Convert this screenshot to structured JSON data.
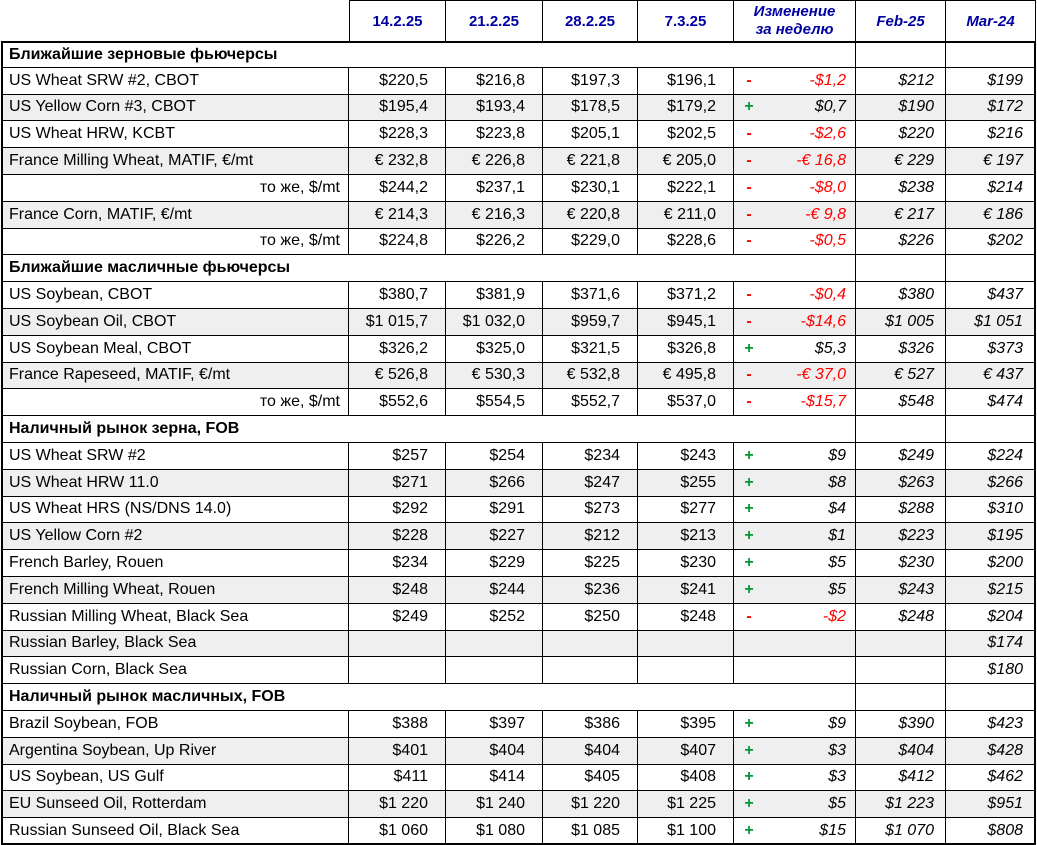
{
  "colors": {
    "header_text": "#0000A0",
    "negative": "#FF0000",
    "positive": "#009933",
    "row_shade": "#EFEFEF",
    "border": "#000000"
  },
  "header": {
    "date_columns": [
      "14.2.25",
      "21.2.25",
      "28.2.25",
      "7.3.25"
    ],
    "change_label_line1": "Изменение",
    "change_label_line2": "за неделю",
    "month_columns": [
      "Feb-25",
      "Mar-24"
    ]
  },
  "rows": [
    {
      "type": "section",
      "label": "Ближайшие зерновые фьючерсы"
    },
    {
      "type": "data",
      "label": "US Wheat SRW #2, CBOT",
      "align": "left",
      "values": [
        "$220,5",
        "$216,8",
        "$197,3",
        "$196,1"
      ],
      "sign": "-",
      "change": "-$1,2",
      "feb25": "$212",
      "mar24": "$199"
    },
    {
      "type": "data",
      "label": "US Yellow Corn #3, CBOT",
      "align": "left",
      "values": [
        "$195,4",
        "$193,4",
        "$178,5",
        "$179,2"
      ],
      "sign": "+",
      "change": "$0,7",
      "feb25": "$190",
      "mar24": "$172"
    },
    {
      "type": "data",
      "label": "US Wheat HRW, KCBT",
      "align": "left",
      "values": [
        "$228,3",
        "$223,8",
        "$205,1",
        "$202,5"
      ],
      "sign": "-",
      "change": "-$2,6",
      "feb25": "$220",
      "mar24": "$216"
    },
    {
      "type": "data",
      "label": "France Milling Wheat, MATIF, €/mt",
      "align": "left",
      "values": [
        "€ 232,8",
        "€ 226,8",
        "€ 221,8",
        "€ 205,0"
      ],
      "sign": "-",
      "change": "-€ 16,8",
      "feb25": "€ 229",
      "mar24": "€ 197"
    },
    {
      "type": "data",
      "label": "то же, $/mt",
      "align": "right",
      "values": [
        "$244,2",
        "$237,1",
        "$230,1",
        "$222,1"
      ],
      "sign": "-",
      "change": "-$8,0",
      "feb25": "$238",
      "mar24": "$214"
    },
    {
      "type": "data",
      "label": "France Corn, MATIF, €/mt",
      "align": "left",
      "values": [
        "€ 214,3",
        "€ 216,3",
        "€ 220,8",
        "€ 211,0"
      ],
      "sign": "-",
      "change": "-€ 9,8",
      "feb25": "€ 217",
      "mar24": "€ 186"
    },
    {
      "type": "data",
      "label": "то же, $/mt",
      "align": "right",
      "values": [
        "$224,8",
        "$226,2",
        "$229,0",
        "$228,6"
      ],
      "sign": "-",
      "change": "-$0,5",
      "feb25": "$226",
      "mar24": "$202"
    },
    {
      "type": "section",
      "label": "Ближайшие масличные фьючерсы"
    },
    {
      "type": "data",
      "label": "US Soybean, CBOT",
      "align": "left",
      "values": [
        "$380,7",
        "$381,9",
        "$371,6",
        "$371,2"
      ],
      "sign": "-",
      "change": "-$0,4",
      "feb25": "$380",
      "mar24": "$437"
    },
    {
      "type": "data",
      "label": "US Soybean Oil, CBOT",
      "align": "left",
      "values": [
        "$1 015,7",
        "$1 032,0",
        "$959,7",
        "$945,1"
      ],
      "sign": "-",
      "change": "-$14,6",
      "feb25": "$1 005",
      "mar24": "$1 051"
    },
    {
      "type": "data",
      "label": "US Soybean Meal, CBOT",
      "align": "left",
      "values": [
        "$326,2",
        "$325,0",
        "$321,5",
        "$326,8"
      ],
      "sign": "+",
      "change": "$5,3",
      "feb25": "$326",
      "mar24": "$373"
    },
    {
      "type": "data",
      "label": "France Rapeseed, MATIF, €/mt",
      "align": "left",
      "values": [
        "€ 526,8",
        "€ 530,3",
        "€ 532,8",
        "€ 495,8"
      ],
      "sign": "-",
      "change": "-€ 37,0",
      "feb25": "€ 527",
      "mar24": "€ 437"
    },
    {
      "type": "data",
      "label": "то же, $/mt",
      "align": "right",
      "values": [
        "$552,6",
        "$554,5",
        "$552,7",
        "$537,0"
      ],
      "sign": "-",
      "change": "-$15,7",
      "feb25": "$548",
      "mar24": "$474"
    },
    {
      "type": "section",
      "label": "Наличный рынок зерна, FOB"
    },
    {
      "type": "data",
      "label": "US Wheat SRW #2",
      "align": "left",
      "values": [
        "$257",
        "$254",
        "$234",
        "$243"
      ],
      "sign": "+",
      "change": "$9",
      "feb25": "$249",
      "mar24": "$224"
    },
    {
      "type": "data",
      "label": "US Wheat HRW 11.0",
      "align": "left",
      "values": [
        "$271",
        "$266",
        "$247",
        "$255"
      ],
      "sign": "+",
      "change": "$8",
      "feb25": "$263",
      "mar24": "$266"
    },
    {
      "type": "data",
      "label": "US Wheat HRS (NS/DNS 14.0)",
      "align": "left",
      "values": [
        "$292",
        "$291",
        "$273",
        "$277"
      ],
      "sign": "+",
      "change": "$4",
      "feb25": "$288",
      "mar24": "$310"
    },
    {
      "type": "data",
      "label": "US Yellow Corn #2",
      "align": "left",
      "values": [
        "$228",
        "$227",
        "$212",
        "$213"
      ],
      "sign": "+",
      "change": "$1",
      "feb25": "$223",
      "mar24": "$195"
    },
    {
      "type": "data",
      "label": "French Barley, Rouen",
      "align": "left",
      "values": [
        "$234",
        "$229",
        "$225",
        "$230"
      ],
      "sign": "+",
      "change": "$5",
      "feb25": "$230",
      "mar24": "$200"
    },
    {
      "type": "data",
      "label": "French Milling Wheat, Rouen",
      "align": "left",
      "values": [
        "$248",
        "$244",
        "$236",
        "$241"
      ],
      "sign": "+",
      "change": "$5",
      "feb25": "$243",
      "mar24": "$215"
    },
    {
      "type": "data",
      "label": "Russian Milling Wheat, Black Sea",
      "align": "left",
      "values": [
        "$249",
        "$252",
        "$250",
        "$248"
      ],
      "sign": "-",
      "change": "-$2",
      "feb25": "$248",
      "mar24": "$204"
    },
    {
      "type": "data",
      "label": "Russian Barley, Black Sea",
      "align": "left",
      "values": [
        "",
        "",
        "",
        ""
      ],
      "sign": "",
      "change": "",
      "feb25": "",
      "mar24": "$174"
    },
    {
      "type": "data",
      "label": "Russian Corn, Black Sea",
      "align": "left",
      "values": [
        "",
        "",
        "",
        ""
      ],
      "sign": "",
      "change": "",
      "feb25": "",
      "mar24": "$180"
    },
    {
      "type": "section",
      "label": "Наличный рынок масличных, FOB"
    },
    {
      "type": "data",
      "label": "Brazil Soybean, FOB",
      "align": "left",
      "values": [
        "$388",
        "$397",
        "$386",
        "$395"
      ],
      "sign": "+",
      "change": "$9",
      "feb25": "$390",
      "mar24": "$423"
    },
    {
      "type": "data",
      "label": "Argentina Soybean, Up River",
      "align": "left",
      "values": [
        "$401",
        "$404",
        "$404",
        "$407"
      ],
      "sign": "+",
      "change": "$3",
      "feb25": "$404",
      "mar24": "$428"
    },
    {
      "type": "data",
      "label": "US Soybean, US Gulf",
      "align": "left",
      "values": [
        "$411",
        "$414",
        "$405",
        "$408"
      ],
      "sign": "+",
      "change": "$3",
      "feb25": "$412",
      "mar24": "$462"
    },
    {
      "type": "data",
      "label": "EU Sunseed Oil, Rotterdam",
      "align": "left",
      "values": [
        "$1 220",
        "$1 240",
        "$1 220",
        "$1 225"
      ],
      "sign": "+",
      "change": "$5",
      "feb25": "$1 223",
      "mar24": "$951"
    },
    {
      "type": "data",
      "label": "Russian Sunseed Oil, Black Sea",
      "align": "left",
      "values": [
        "$1 060",
        "$1 080",
        "$1 085",
        "$1 100"
      ],
      "sign": "+",
      "change": "$15",
      "feb25": "$1 070",
      "mar24": "$808"
    }
  ]
}
